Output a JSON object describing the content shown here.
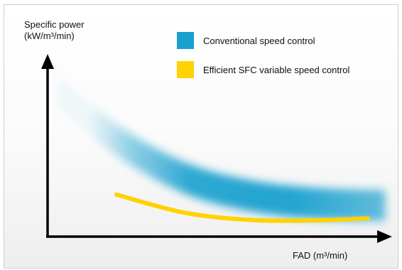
{
  "chart_data": {
    "type": "area",
    "title": "",
    "ylabel_line1": "Specific power",
    "ylabel_line2": "(kW/m³/min)",
    "xlabel": "FAD (m³/min)",
    "axis_ticks": false,
    "grid": false,
    "legend_position": "top-center",
    "series": [
      {
        "name": "Conventional speed control",
        "color": "#1aa0cf",
        "style": "blurred-band",
        "curve": [
          [
            0.03,
            0.8
          ],
          [
            0.2,
            0.53
          ],
          [
            0.4,
            0.32
          ],
          [
            0.6,
            0.22
          ],
          [
            0.8,
            0.18
          ],
          [
            0.98,
            0.17
          ]
        ]
      },
      {
        "name": "Efficient SFC variable speed control",
        "color": "#ffd200",
        "style": "line",
        "curve": [
          [
            0.2,
            0.23
          ],
          [
            0.4,
            0.13
          ],
          [
            0.6,
            0.09
          ],
          [
            0.8,
            0.09
          ],
          [
            0.93,
            0.1
          ]
        ]
      }
    ]
  }
}
